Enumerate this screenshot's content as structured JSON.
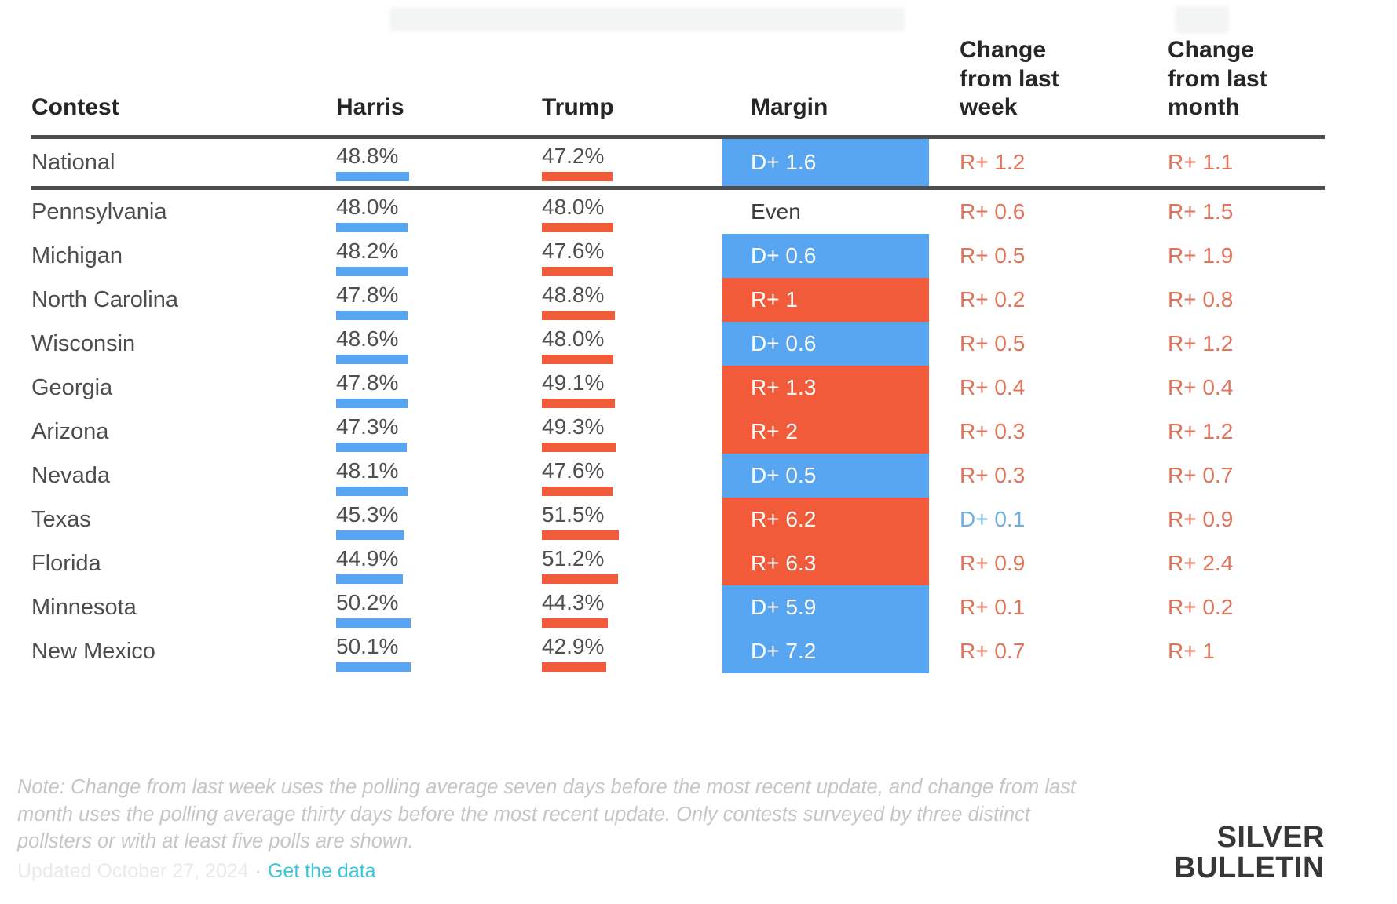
{
  "colors": {
    "harris_blue": "#58a6f1",
    "trump_red": "#f25b3a",
    "change_red": "#e0735a",
    "change_blue": "#6db1e0",
    "link_cyan": "#3cc4da"
  },
  "chart_data": {
    "type": "table",
    "columns": [
      "Contest",
      "Harris",
      "Trump",
      "Margin",
      "Change from last week",
      "Change from last month"
    ],
    "bar_unit": "percent of vote, bar width proportional to value",
    "rows": [
      {
        "contest": "National",
        "harris": 48.8,
        "trump": 47.2,
        "margin": "D+ 1.6",
        "margin_side": "D",
        "week": "R+ 1.2",
        "week_side": "R",
        "month": "R+ 1.1",
        "month_side": "R",
        "is_national": true
      },
      {
        "contest": "Pennsylvania",
        "harris": 48.0,
        "trump": 48.0,
        "margin": "Even",
        "margin_side": "even",
        "week": "R+ 0.6",
        "week_side": "R",
        "month": "R+ 1.5",
        "month_side": "R",
        "is_national": false
      },
      {
        "contest": "Michigan",
        "harris": 48.2,
        "trump": 47.6,
        "margin": "D+ 0.6",
        "margin_side": "D",
        "week": "R+ 0.5",
        "week_side": "R",
        "month": "R+ 1.9",
        "month_side": "R",
        "is_national": false
      },
      {
        "contest": "North Carolina",
        "harris": 47.8,
        "trump": 48.8,
        "margin": "R+ 1",
        "margin_side": "R",
        "week": "R+ 0.2",
        "week_side": "R",
        "month": "R+ 0.8",
        "month_side": "R",
        "is_national": false
      },
      {
        "contest": "Wisconsin",
        "harris": 48.6,
        "trump": 48.0,
        "margin": "D+ 0.6",
        "margin_side": "D",
        "week": "R+ 0.5",
        "week_side": "R",
        "month": "R+ 1.2",
        "month_side": "R",
        "is_national": false
      },
      {
        "contest": "Georgia",
        "harris": 47.8,
        "trump": 49.1,
        "margin": "R+ 1.3",
        "margin_side": "R",
        "week": "R+ 0.4",
        "week_side": "R",
        "month": "R+ 0.4",
        "month_side": "R",
        "is_national": false
      },
      {
        "contest": "Arizona",
        "harris": 47.3,
        "trump": 49.3,
        "margin": "R+ 2",
        "margin_side": "R",
        "week": "R+ 0.3",
        "week_side": "R",
        "month": "R+ 1.2",
        "month_side": "R",
        "is_national": false
      },
      {
        "contest": "Nevada",
        "harris": 48.1,
        "trump": 47.6,
        "margin": "D+ 0.5",
        "margin_side": "D",
        "week": "R+ 0.3",
        "week_side": "R",
        "month": "R+ 0.7",
        "month_side": "R",
        "is_national": false
      },
      {
        "contest": "Texas",
        "harris": 45.3,
        "trump": 51.5,
        "margin": "R+ 6.2",
        "margin_side": "R",
        "week": "D+ 0.1",
        "week_side": "D",
        "month": "R+ 0.9",
        "month_side": "R",
        "is_national": false
      },
      {
        "contest": "Florida",
        "harris": 44.9,
        "trump": 51.2,
        "margin": "R+ 6.3",
        "margin_side": "R",
        "week": "R+ 0.9",
        "week_side": "R",
        "month": "R+ 2.4",
        "month_side": "R",
        "is_national": false
      },
      {
        "contest": "Minnesota",
        "harris": 50.2,
        "trump": 44.3,
        "margin": "D+ 5.9",
        "margin_side": "D",
        "week": "R+ 0.1",
        "week_side": "R",
        "month": "R+ 0.2",
        "month_side": "R",
        "is_national": false
      },
      {
        "contest": "New Mexico",
        "harris": 50.1,
        "trump": 42.9,
        "margin": "D+ 7.2",
        "margin_side": "D",
        "week": "R+ 0.7",
        "week_side": "R",
        "month": "R+ 1",
        "month_side": "R",
        "is_national": false
      }
    ]
  },
  "note": {
    "line1": "Note: Change from last week uses the polling average seven days before the most recent update, and change from last",
    "line2": "month uses the polling average thirty days before the most recent update. Only contests surveyed by three distinct",
    "line3": "pollsters or with at least five polls are shown."
  },
  "footer": {
    "updated": "Updated October 27, 2024",
    "separator": "·",
    "link": "Get the data"
  },
  "logo": {
    "line1": "SILVER",
    "line2": "BULLETIN"
  }
}
